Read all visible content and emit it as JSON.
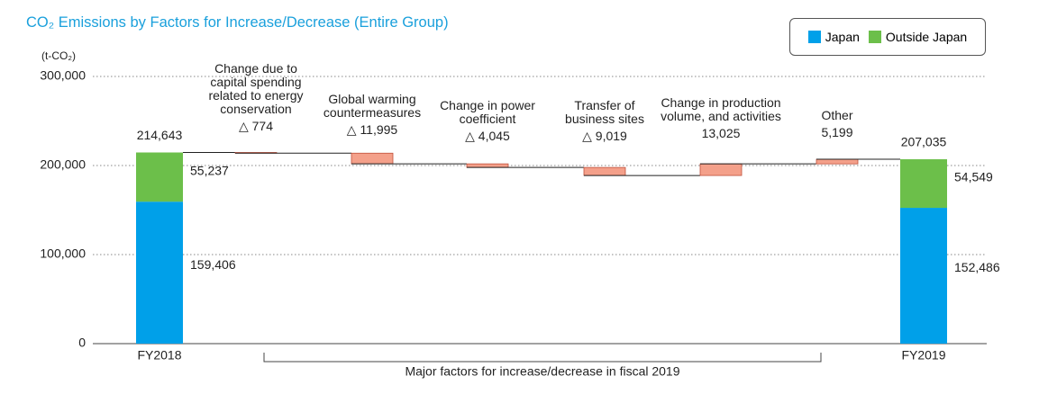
{
  "chart_data": {
    "type": "waterfall",
    "title": "CO₂ Emissions by Factors for Increase/Decrease (Entire Group)",
    "y_axis_label": "(t-CO₂)",
    "ylim": [
      0,
      300000
    ],
    "yticks": [
      0,
      {
        "value": 100000,
        "label": "100,000"
      },
      {
        "value": 200000,
        "label": "200,000"
      },
      {
        "value": 300000,
        "label": "300,000"
      }
    ],
    "grid": true,
    "legend_position": "upper right",
    "totals": {
      "categories": [
        "FY2018",
        "FY2019"
      ],
      "values": [
        214643,
        207035
      ],
      "value_labels": [
        "214,643",
        "207,035"
      ]
    },
    "series": [
      {
        "name": "Japan",
        "color": "#00a0e9",
        "values": [
          159406,
          152486
        ],
        "value_labels": [
          "159,406",
          "152,486"
        ]
      },
      {
        "name": "Outside Japan",
        "color": "#6cbf4a",
        "values": [
          55237,
          54549
        ],
        "value_labels": [
          "55,237",
          "54,549"
        ]
      }
    ],
    "factors": {
      "categories": [
        "Change due to capital spending related to energy conservation",
        "Global warming countermeasures",
        "Change in power coefficient",
        "Transfer of business sites",
        "Change in production volume, and activities",
        "Other"
      ],
      "values": [
        -774,
        -11995,
        -4045,
        -9019,
        13025,
        5199
      ],
      "value_labels": [
        "△ 774",
        "△ 11,995",
        "△ 4,045",
        "△ 9,019",
        "13,025",
        "5,199"
      ],
      "color": "#f4a08a"
    },
    "annotation": "Major factors for increase/decrease in fiscal 2019"
  }
}
